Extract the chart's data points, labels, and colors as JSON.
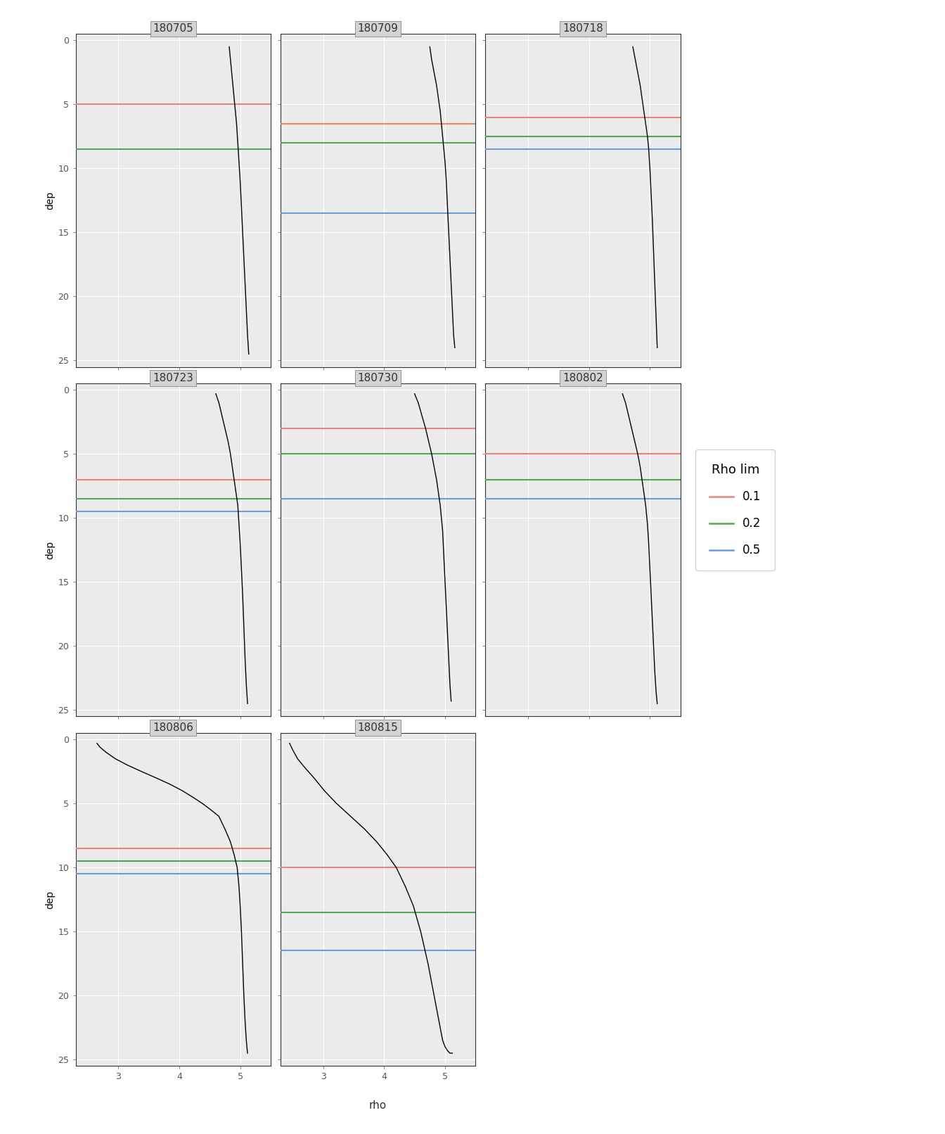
{
  "panels": [
    {
      "title": "180705",
      "rho": [
        4.82,
        4.84,
        4.86,
        4.88,
        4.9,
        4.92,
        4.94,
        4.96,
        4.98,
        5.0,
        5.02,
        5.04,
        5.06,
        5.08,
        5.1,
        5.12,
        5.14
      ],
      "dep": [
        0.5,
        1.5,
        2.5,
        3.5,
        4.5,
        5.5,
        6.5,
        8.0,
        9.5,
        11.0,
        13.0,
        15.0,
        17.0,
        19.0,
        21.0,
        23.0,
        24.5
      ],
      "mld_01": 5.0,
      "mld_02": 8.5,
      "mld_05": null
    },
    {
      "title": "180709",
      "rho": [
        4.75,
        4.78,
        4.82,
        4.86,
        4.89,
        4.92,
        4.94,
        4.96,
        4.98,
        5.0,
        5.02,
        5.04,
        5.06,
        5.08,
        5.1,
        5.12,
        5.14,
        5.16
      ],
      "dep": [
        0.5,
        1.5,
        2.5,
        3.5,
        4.5,
        5.5,
        6.5,
        7.5,
        8.5,
        9.5,
        11.0,
        13.0,
        15.0,
        17.0,
        19.0,
        21.0,
        23.0,
        24.0
      ],
      "mld_01": 6.5,
      "mld_02": 8.0,
      "mld_05": 13.5
    },
    {
      "title": "180718",
      "rho": [
        4.72,
        4.76,
        4.8,
        4.84,
        4.87,
        4.9,
        4.93,
        4.96,
        4.98,
        5.0,
        5.02,
        5.04,
        5.06,
        5.08,
        5.1,
        5.12
      ],
      "dep": [
        0.5,
        1.5,
        2.5,
        3.5,
        4.5,
        5.5,
        6.5,
        7.5,
        8.5,
        10.0,
        12.0,
        14.0,
        16.5,
        19.0,
        21.5,
        24.0
      ],
      "mld_01": 6.0,
      "mld_02": 7.5,
      "mld_05": 8.5
    },
    {
      "title": "180723",
      "rho": [
        4.6,
        4.65,
        4.7,
        4.75,
        4.8,
        4.84,
        4.87,
        4.9,
        4.93,
        4.96,
        4.98,
        5.0,
        5.02,
        5.04,
        5.06,
        5.08,
        5.1,
        5.12
      ],
      "dep": [
        0.3,
        1.0,
        2.0,
        3.0,
        4.0,
        5.0,
        6.0,
        7.0,
        8.0,
        9.0,
        10.5,
        12.0,
        14.0,
        16.0,
        18.5,
        21.0,
        23.0,
        24.5
      ],
      "mld_01": 7.0,
      "mld_02": 8.5,
      "mld_05": 9.5
    },
    {
      "title": "180730",
      "rho": [
        4.5,
        4.56,
        4.62,
        4.68,
        4.73,
        4.78,
        4.82,
        4.86,
        4.89,
        4.92,
        4.94,
        4.96,
        4.98,
        5.0,
        5.02,
        5.04,
        5.06,
        5.08,
        5.1
      ],
      "dep": [
        0.3,
        1.0,
        2.0,
        3.0,
        4.0,
        5.0,
        6.0,
        7.0,
        8.0,
        9.0,
        10.0,
        11.0,
        13.0,
        15.0,
        17.0,
        19.0,
        21.0,
        23.0,
        24.3
      ],
      "mld_01": 3.0,
      "mld_02": 5.0,
      "mld_05": 8.5
    },
    {
      "title": "180802",
      "rho": [
        4.55,
        4.6,
        4.65,
        4.7,
        4.75,
        4.8,
        4.84,
        4.87,
        4.9,
        4.93,
        4.96,
        4.98,
        5.0,
        5.02,
        5.04,
        5.06,
        5.08,
        5.1,
        5.12
      ],
      "dep": [
        0.3,
        1.0,
        2.0,
        3.0,
        4.0,
        5.0,
        6.0,
        7.0,
        8.0,
        9.0,
        10.5,
        12.0,
        14.0,
        16.0,
        18.0,
        20.0,
        22.0,
        23.5,
        24.5
      ],
      "mld_01": 5.0,
      "mld_02": 7.0,
      "mld_05": 8.5
    },
    {
      "title": "180806",
      "rho": [
        2.65,
        2.7,
        2.8,
        2.95,
        3.15,
        3.38,
        3.62,
        3.85,
        4.05,
        4.22,
        4.38,
        4.52,
        4.65,
        4.75,
        4.84,
        4.9,
        4.95,
        4.98,
        5.0,
        5.02,
        5.04,
        5.06,
        5.08,
        5.1,
        5.12
      ],
      "dep": [
        0.3,
        0.6,
        1.0,
        1.5,
        2.0,
        2.5,
        3.0,
        3.5,
        4.0,
        4.5,
        5.0,
        5.5,
        6.0,
        7.0,
        8.0,
        9.0,
        10.0,
        11.5,
        13.0,
        15.0,
        17.5,
        20.0,
        22.0,
        23.5,
        24.5
      ],
      "mld_01": 8.5,
      "mld_02": 9.5,
      "mld_05": 10.5
    },
    {
      "title": "180815",
      "rho": [
        2.45,
        2.5,
        2.58,
        2.7,
        2.85,
        3.02,
        3.22,
        3.45,
        3.68,
        3.88,
        4.05,
        4.2,
        4.35,
        4.48,
        4.6,
        4.72,
        4.82,
        4.9,
        4.96,
        5.0,
        5.04,
        5.08,
        5.12
      ],
      "dep": [
        0.3,
        0.8,
        1.5,
        2.2,
        3.0,
        4.0,
        5.0,
        6.0,
        7.0,
        8.0,
        9.0,
        10.0,
        11.5,
        13.0,
        15.0,
        17.5,
        20.0,
        22.0,
        23.5,
        24.0,
        24.3,
        24.5,
        24.5
      ],
      "mld_01": 10.0,
      "mld_02": 13.5,
      "mld_05": 16.5
    }
  ],
  "xlim": [
    2.3,
    5.5
  ],
  "ylim": [
    25.5,
    -0.5
  ],
  "xticks": [
    3,
    4,
    5
  ],
  "yticks": [
    0,
    5,
    10,
    15,
    20,
    25
  ],
  "xlabel": "rho",
  "ylabel": "dep",
  "legend_title": "Rho lim",
  "legend_entries": [
    {
      "label": "0.1",
      "color": "#E8847A"
    },
    {
      "label": "0.2",
      "color": "#53A653"
    },
    {
      "label": "0.5",
      "color": "#6B9FD4"
    }
  ],
  "line_color_01": "#E8847A",
  "line_color_02": "#53A653",
  "line_color_05": "#6B9FD4",
  "curve_color": "#000000",
  "bg_color": "#FFFFFF",
  "panel_bg": "#EBEBEB",
  "header_bg": "#D3D3D3",
  "grid_color": "#FFFFFF",
  "title_fontsize": 11,
  "axis_fontsize": 10,
  "tick_fontsize": 9,
  "legend_fontsize": 12,
  "legend_title_fontsize": 13
}
